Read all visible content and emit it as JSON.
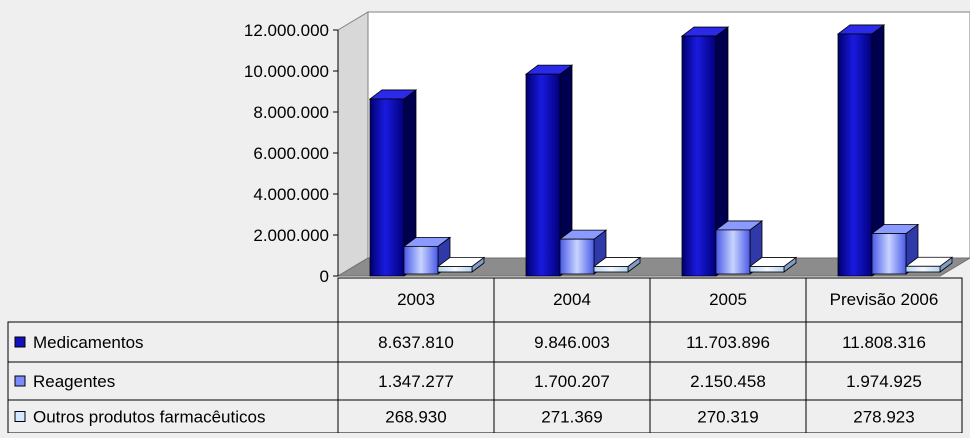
{
  "chart_data": {
    "type": "bar",
    "categories": [
      "2003",
      "2004",
      "2005",
      "Previsão 2006"
    ],
    "series": [
      {
        "name": "Medicamentos",
        "values": [
          8637810,
          9846003,
          11703896,
          11808316
        ],
        "color": "#1515c8",
        "display": [
          "8.637.810",
          "9.846.003",
          "11.703.896",
          "11.808.316"
        ]
      },
      {
        "name": "Reagentes",
        "values": [
          1347277,
          1700207,
          2150458,
          1974925
        ],
        "color": "#6a7cff",
        "display": [
          "1.347.277",
          "1.700.207",
          "2.150.458",
          "1.974.925"
        ]
      },
      {
        "name": "Outros produtos farmacêuticos",
        "values": [
          268930,
          271369,
          270319,
          278923
        ],
        "color": "#cfe4ff",
        "display": [
          "268.930",
          "271.369",
          "270.319",
          "278.923"
        ]
      }
    ],
    "yticks": [
      "0",
      "2.000.000",
      "4.000.000",
      "6.000.000",
      "8.000.000",
      "10.000.000",
      "12.000.000"
    ],
    "ylim": [
      0,
      12000000
    ],
    "grid": false,
    "data_table": true
  }
}
